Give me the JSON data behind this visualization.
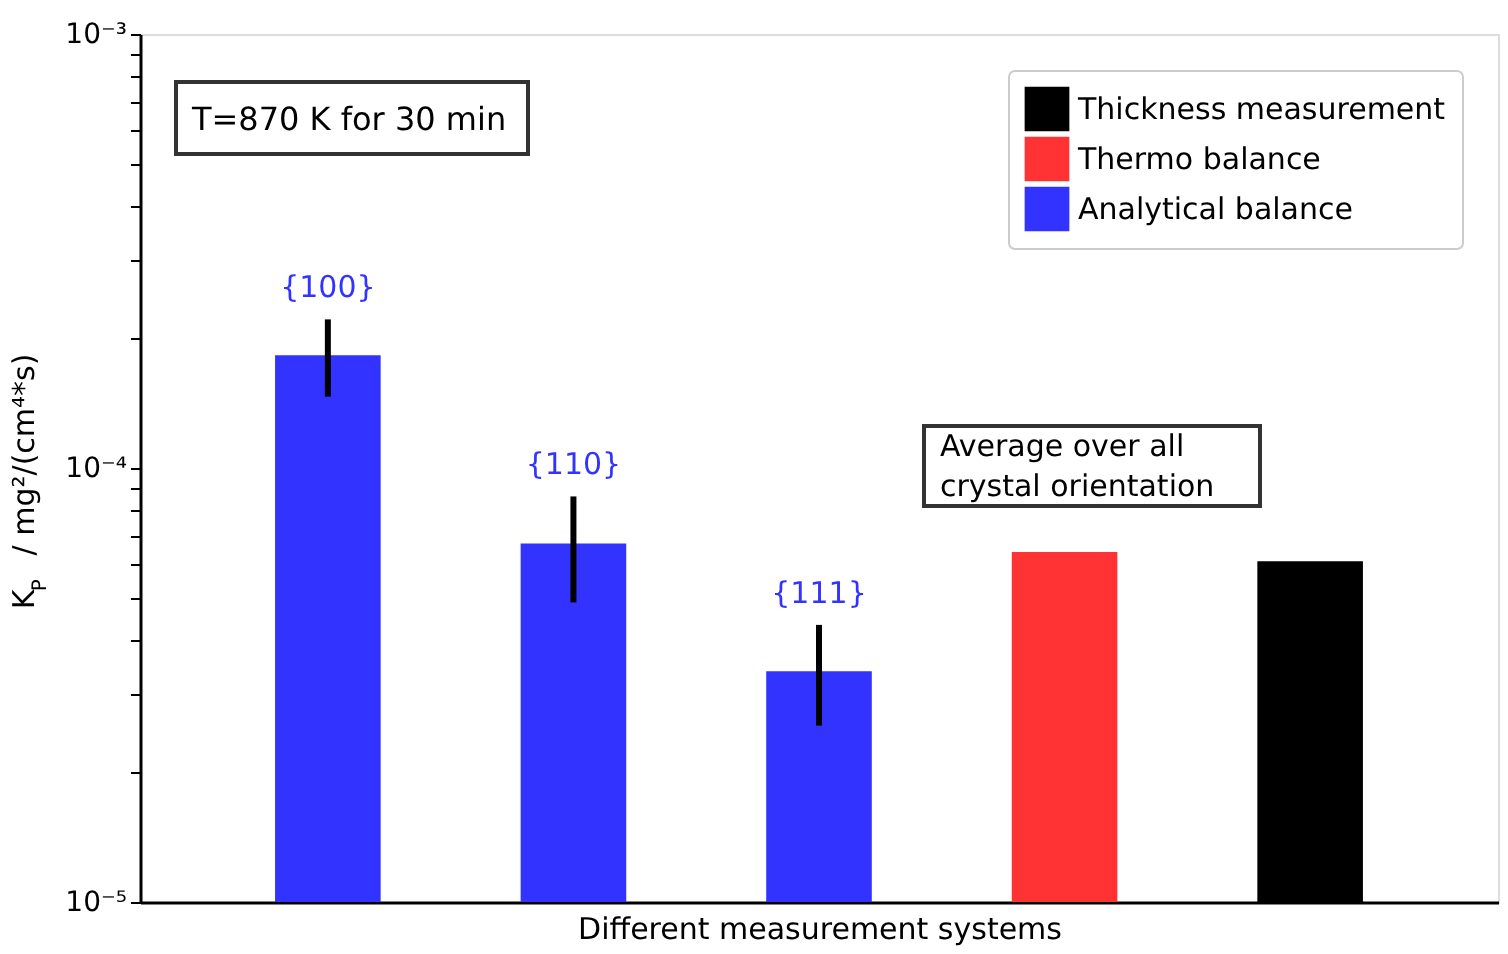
{
  "chart_data": {
    "type": "bar",
    "xlabel": "Different measurement systems",
    "ylabel": "K$_{P}$ / mg²/(cm⁴*s)",
    "categories": [
      null,
      null,
      null,
      null,
      null
    ],
    "series": [
      {
        "name": "Thickness measurement",
        "color": "#000000",
        "values": [
          null,
          null,
          null,
          null,
          6.1e-05
        ]
      },
      {
        "name": "Thermo balance",
        "color": "#ff3333",
        "values": [
          null,
          null,
          null,
          6.4e-05,
          null
        ]
      },
      {
        "name": "Analytical balance",
        "color": "#3333ff",
        "values": [
          0.000182,
          6.7e-05,
          3.4e-05,
          null,
          null
        ],
        "errors": [
          [
            0.000146,
            0.00022
          ],
          [
            4.9e-05,
            8.6e-05
          ],
          [
            2.55e-05,
            4.35e-05
          ],
          null,
          null
        ]
      }
    ],
    "log": true,
    "ylim": [
      1e-05,
      0.001
    ],
    "yticks": [
      {
        "value": 1e-05,
        "label": "10⁻⁵"
      },
      {
        "value": 2e-05,
        "label": null
      },
      {
        "value": 3e-05,
        "label": null
      },
      {
        "value": 4e-05,
        "label": null
      },
      {
        "value": 5e-05,
        "label": null
      },
      {
        "value": 6e-05,
        "label": null
      },
      {
        "value": 7e-05,
        "label": null
      },
      {
        "value": 8e-05,
        "label": null
      },
      {
        "value": 9e-05,
        "label": null
      },
      {
        "value": 0.0001,
        "label": "10⁻⁴"
      },
      {
        "value": 0.0002,
        "label": null
      },
      {
        "value": 0.0003,
        "label": null
      },
      {
        "value": 0.0004,
        "label": null
      },
      {
        "value": 0.0005,
        "label": null
      },
      {
        "value": 0.0006,
        "label": null
      },
      {
        "value": 0.0007,
        "label": null
      },
      {
        "value": 0.0008,
        "label": null
      },
      {
        "value": 0.0009,
        "label": null
      },
      {
        "value": 0.001,
        "label": "10⁻³"
      }
    ],
    "annotations": [
      "T=870 K for 30 min",
      "Average over all crystal orientation",
      "{100}",
      "{110}",
      "{111}"
    ],
    "grid": false,
    "legend": "top right"
  }
}
